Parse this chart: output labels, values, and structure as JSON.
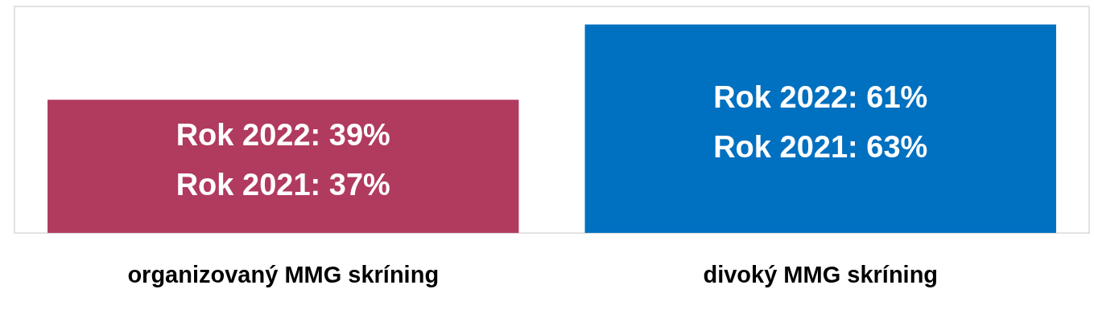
{
  "chart_data": {
    "type": "bar",
    "categories": [
      "organizovaný MMG skríning",
      "divoký MMG skríning"
    ],
    "values": [
      39,
      61
    ],
    "colors": [
      "#b13a5f",
      "#0070c0"
    ],
    "value_labels": [
      "Rok 2022: 39%\nRok 2021: 37%",
      "Rok 2022: 61%\nRok 2021: 63%"
    ],
    "grid": false,
    "legend": false
  }
}
